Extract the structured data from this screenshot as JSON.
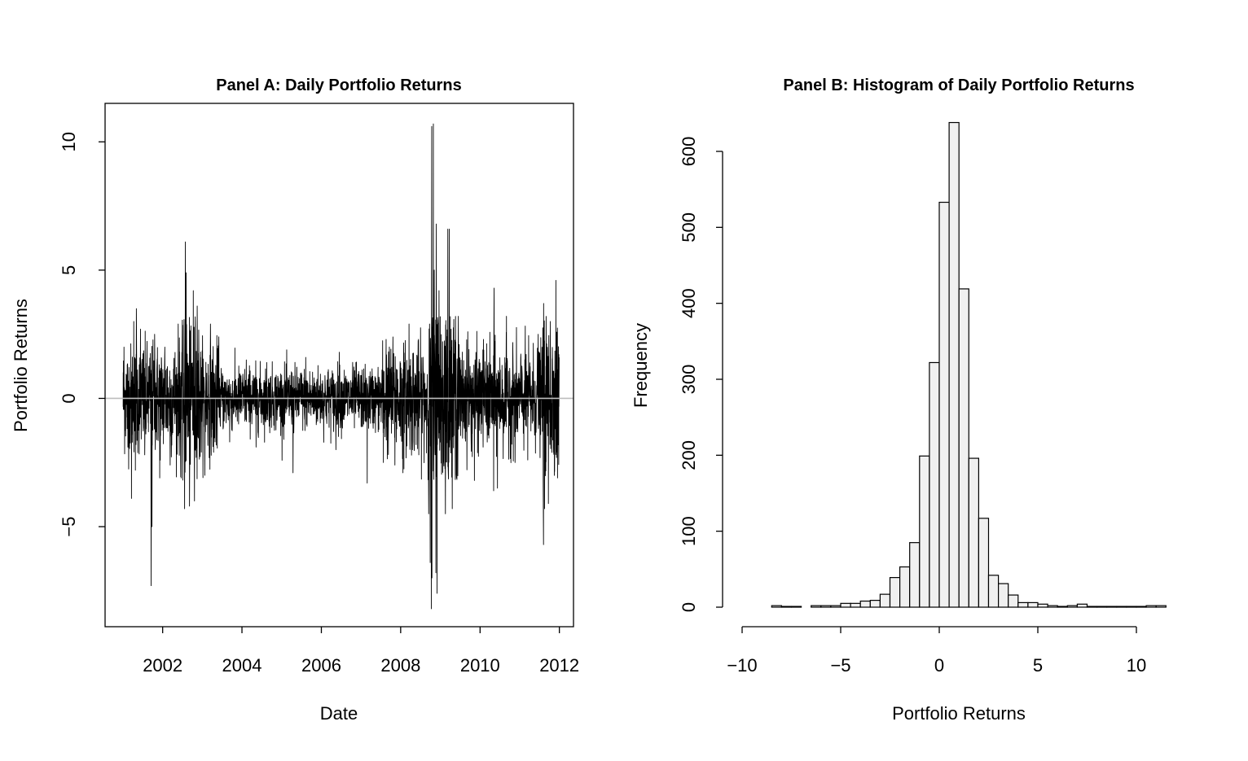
{
  "chart_data": [
    {
      "type": "line",
      "title": "Panel A: Daily Portfolio Returns",
      "xlabel": "Date",
      "ylabel": "Portfolio Returns",
      "xlim": [
        "2000-07-20",
        "2012-05-10"
      ],
      "ylim": [
        -8.9,
        11.5
      ],
      "x_ticks": [
        2002,
        2004,
        2006,
        2008,
        2010,
        2012
      ],
      "y_ticks": [
        -5,
        0,
        5,
        10
      ],
      "y_tick_labels": [
        "−5",
        "0",
        "5",
        "10"
      ],
      "reference_line": {
        "y": 0,
        "color": "#bdbdbd"
      },
      "line_color": "#000000",
      "grid": false,
      "start_date": "2001-01-02",
      "end_date": "2011-12-30",
      "series": [
        {
          "values": [
            {
              "x": "2001-01-10",
              "y": 2.0
            },
            {
              "x": "2001-02-15",
              "y": -1.9
            },
            {
              "x": "2001-03-20",
              "y": -3.9
            },
            {
              "x": "2001-04-10",
              "y": 3.0
            },
            {
              "x": "2001-04-25",
              "y": -2.8
            },
            {
              "x": "2001-05-05",
              "y": 3.5
            },
            {
              "x": "2001-06-10",
              "y": 2.7
            },
            {
              "x": "2001-07-20",
              "y": -2.2
            },
            {
              "x": "2001-09-17",
              "y": -7.3
            },
            {
              "x": "2001-09-25",
              "y": -5.0
            },
            {
              "x": "2001-10-20",
              "y": 2.5
            },
            {
              "x": "2001-12-05",
              "y": -3.1
            },
            {
              "x": "2002-01-20",
              "y": 2.0
            },
            {
              "x": "2002-03-10",
              "y": -2.6
            },
            {
              "x": "2002-05-25",
              "y": 2.9
            },
            {
              "x": "2002-06-20",
              "y": -3.1
            },
            {
              "x": "2002-07-22",
              "y": -4.3
            },
            {
              "x": "2002-07-29",
              "y": 6.1
            },
            {
              "x": "2002-08-06",
              "y": 4.9
            },
            {
              "x": "2002-09-05",
              "y": -4.2
            },
            {
              "x": "2002-10-10",
              "y": 4.2
            },
            {
              "x": "2002-10-20",
              "y": -4.0
            },
            {
              "x": "2002-11-15",
              "y": 3.6
            },
            {
              "x": "2003-01-25",
              "y": -3.0
            },
            {
              "x": "2003-03-17",
              "y": 2.9
            },
            {
              "x": "2003-04-15",
              "y": -2.1
            },
            {
              "x": "2003-06-01",
              "y": 2.4
            },
            {
              "x": "2003-09-10",
              "y": -1.7
            },
            {
              "x": "2004-02-10",
              "y": 1.5
            },
            {
              "x": "2004-05-10",
              "y": -1.9
            },
            {
              "x": "2004-08-15",
              "y": 1.4
            },
            {
              "x": "2005-01-20",
              "y": -1.6
            },
            {
              "x": "2005-04-15",
              "y": -2.9
            },
            {
              "x": "2005-08-10",
              "y": 1.6
            },
            {
              "x": "2006-05-15",
              "y": -2.0
            },
            {
              "x": "2006-06-15",
              "y": 1.8
            },
            {
              "x": "2006-11-15",
              "y": 1.4
            },
            {
              "x": "2007-02-27",
              "y": -3.3
            },
            {
              "x": "2007-07-26",
              "y": -2.5
            },
            {
              "x": "2007-08-20",
              "y": 2.3
            },
            {
              "x": "2007-11-10",
              "y": -2.6
            },
            {
              "x": "2008-01-22",
              "y": -2.9
            },
            {
              "x": "2008-03-18",
              "y": 2.9
            },
            {
              "x": "2008-06-15",
              "y": -2.2
            },
            {
              "x": "2008-09-15",
              "y": -4.5
            },
            {
              "x": "2008-09-29",
              "y": -6.4
            },
            {
              "x": "2008-10-09",
              "y": -8.2
            },
            {
              "x": "2008-10-13",
              "y": 10.6
            },
            {
              "x": "2008-10-15",
              "y": -7.0
            },
            {
              "x": "2008-10-28",
              "y": 10.7
            },
            {
              "x": "2008-11-05",
              "y": 5.0
            },
            {
              "x": "2008-11-20",
              "y": -6.8
            },
            {
              "x": "2008-11-24",
              "y": 6.8
            },
            {
              "x": "2008-12-01",
              "y": -7.6
            },
            {
              "x": "2008-12-20",
              "y": 4.2
            },
            {
              "x": "2009-02-15",
              "y": -4.5
            },
            {
              "x": "2009-03-10",
              "y": 6.6
            },
            {
              "x": "2009-03-23",
              "y": 6.6
            },
            {
              "x": "2009-04-20",
              "y": -4.3
            },
            {
              "x": "2009-06-15",
              "y": 3.2
            },
            {
              "x": "2009-09-10",
              "y": 2.6
            },
            {
              "x": "2009-11-10",
              "y": -3.2
            },
            {
              "x": "2010-02-01",
              "y": 2.3
            },
            {
              "x": "2010-05-06",
              "y": -3.6
            },
            {
              "x": "2010-05-10",
              "y": 4.3
            },
            {
              "x": "2010-06-10",
              "y": -3.5
            },
            {
              "x": "2010-09-01",
              "y": 3.2
            },
            {
              "x": "2010-11-20",
              "y": -2.5
            },
            {
              "x": "2011-03-16",
              "y": -2.4
            },
            {
              "x": "2011-06-20",
              "y": 2.5
            },
            {
              "x": "2011-08-08",
              "y": -5.7
            },
            {
              "x": "2011-08-09",
              "y": 3.7
            },
            {
              "x": "2011-08-18",
              "y": -4.3
            },
            {
              "x": "2011-09-22",
              "y": -4.1
            },
            {
              "x": "2011-10-10",
              "y": 3.0
            },
            {
              "x": "2011-11-30",
              "y": 4.6
            },
            {
              "x": "2011-12-15",
              "y": -3.1
            }
          ]
        }
      ]
    },
    {
      "type": "bar",
      "title": "Panel B: Histogram of Daily Portfolio Returns",
      "xlabel": "Portfolio Returns",
      "ylabel": "Frequency",
      "xlim": [
        -10,
        11
      ],
      "ylim": [
        0,
        640
      ],
      "x_ticks": [
        -10,
        -5,
        0,
        5,
        10
      ],
      "x_tick_labels": [
        "−10",
        "−5",
        "0",
        "5",
        "10"
      ],
      "y_ticks": [
        0,
        100,
        200,
        300,
        400,
        500,
        600
      ],
      "bar_fill": "#f0f0f0",
      "bar_stroke": "#000000",
      "grid": false,
      "bins": {
        "start": -8.5,
        "width": 0.5
      },
      "values": [
        2,
        1,
        1,
        0,
        2,
        2,
        2,
        5,
        5,
        8,
        9,
        17,
        39,
        53,
        85,
        199,
        322,
        533,
        638,
        419,
        196,
        117,
        42,
        31,
        16,
        6,
        6,
        4,
        2,
        1,
        2,
        4,
        1,
        1,
        1,
        1,
        1,
        1,
        2,
        2
      ]
    }
  ]
}
